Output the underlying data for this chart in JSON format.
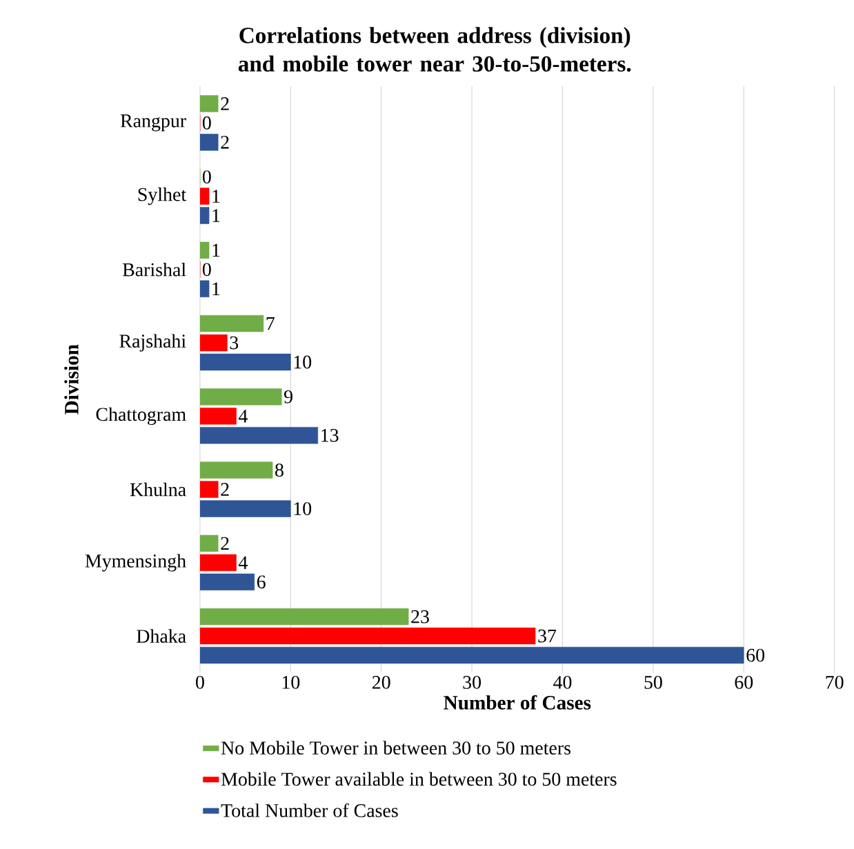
{
  "chart_data": {
    "type": "bar",
    "orientation": "horizontal",
    "title": "**Correlations between address (division) and mobile tower near 30-to-50-meters.**",
    "xlabel": "**Number of Cases**",
    "ylabel": "**Division**",
    "categories": [
      "Rangpur",
      "Sylhet",
      "Barishal",
      "Rajshahi",
      "Chattogram",
      "Khulna",
      "Mymensingh",
      "Dhaka"
    ],
    "series": [
      {
        "name": "No Mobile Tower in between 30 to 50 meters",
        "color": "#70ad47",
        "values": [
          2,
          0,
          1,
          7,
          9,
          8,
          2,
          23
        ]
      },
      {
        "name": "Mobile Tower available in between 30 to 50 meters",
        "color": "#ff0000",
        "values": [
          0,
          1,
          0,
          3,
          4,
          2,
          4,
          37
        ]
      },
      {
        "name": "Total Number of Cases",
        "color": "#2f5597",
        "values": [
          2,
          1,
          1,
          10,
          13,
          10,
          6,
          60
        ]
      }
    ],
    "xlim": [
      0,
      70
    ],
    "xticks": [
      0,
      10,
      20,
      30,
      40,
      50,
      60,
      70
    ],
    "grid": "x",
    "legend": "bottom",
    "data_labels": true
  }
}
